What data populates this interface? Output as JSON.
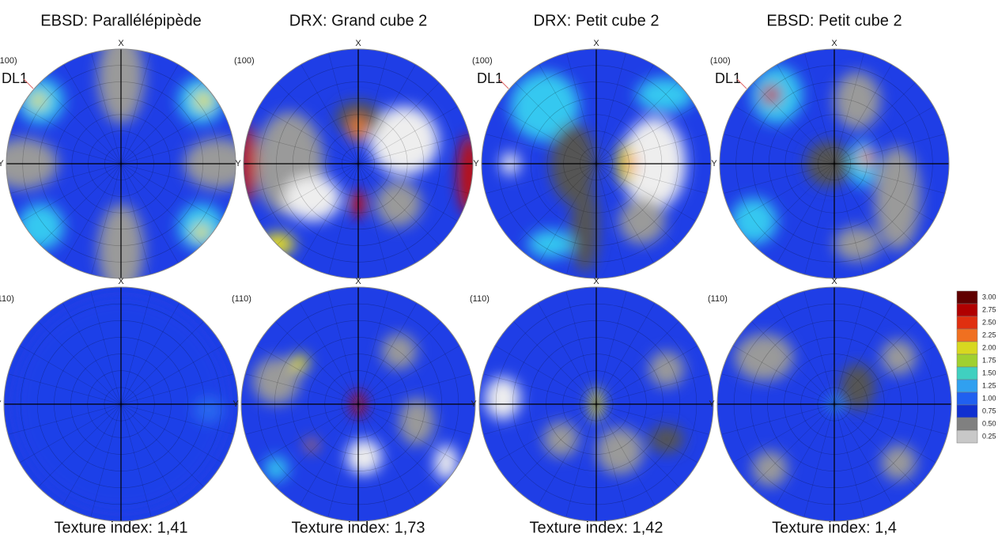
{
  "columns": [
    {
      "title": "EBSD: Parallélépipède",
      "dl_label": "DL1",
      "texture_index": "Texture index: 1,41"
    },
    {
      "title": "DRX: Grand cube 2",
      "texture_index": "Texture index: 1,73"
    },
    {
      "title": "DRX: Petit cube 2",
      "dl_label": "DL1",
      "texture_index": "Texture index: 1,42"
    },
    {
      "title": "EBSD: Petit cube 2",
      "dl_label": "DL1",
      "texture_index": "Texture index: 1,4"
    }
  ],
  "pole_labels": [
    "(100)",
    "(110)"
  ],
  "axis_labels": {
    "x": "X",
    "y": "Y"
  },
  "colorbar": {
    "labels": [
      "3.00",
      "2.75",
      "2.50",
      "2.25",
      "2.00",
      "1.75",
      "1.50",
      "1.25",
      "1.00",
      "0.75",
      "0.50",
      "0.25"
    ]
  }
}
